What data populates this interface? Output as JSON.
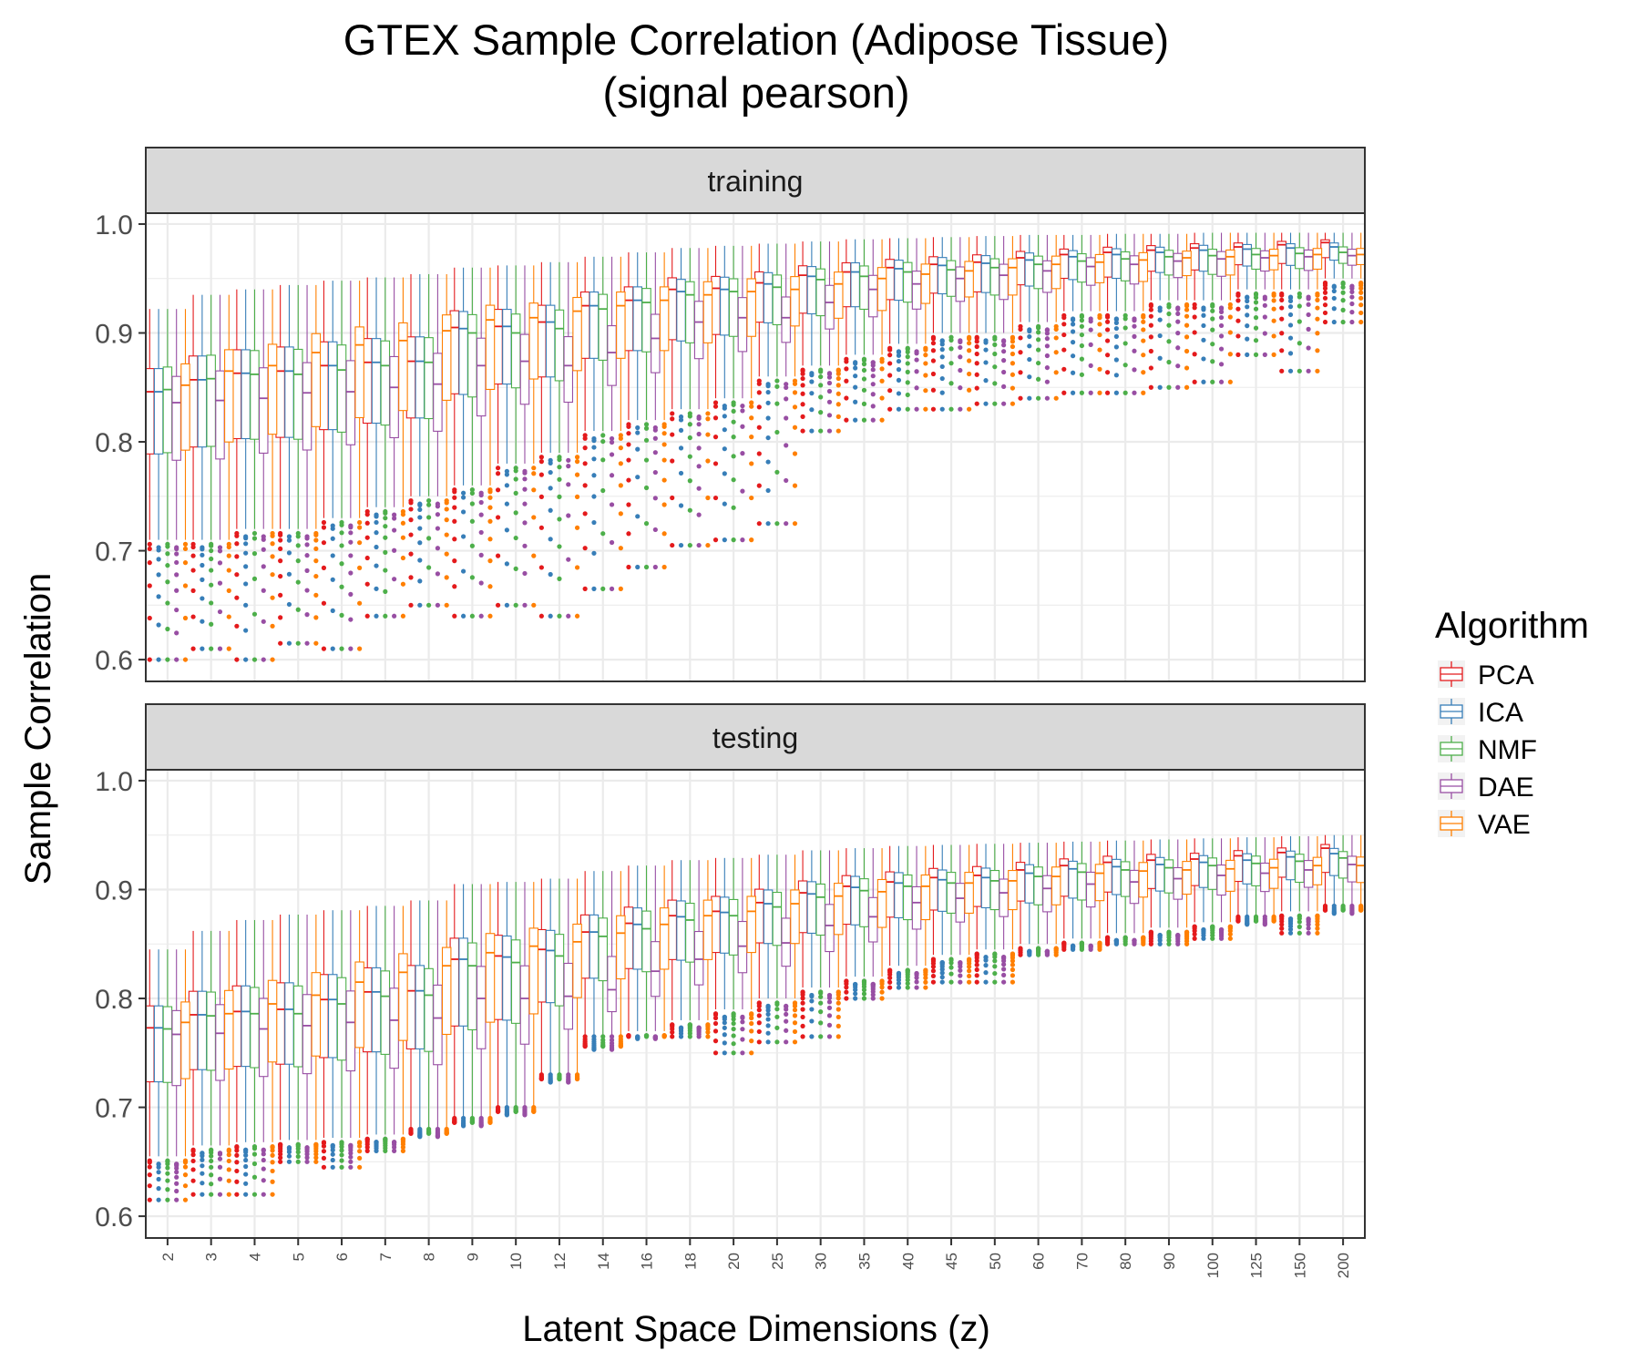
{
  "chart_data": {
    "type": "boxplot",
    "title_line1": "GTEX Sample Correlation (Adipose Tissue)",
    "title_line2": "(signal pearson)",
    "xlabel": "Latent Space Dimensions (z)",
    "ylabel": "Sample Correlation",
    "ylim": [
      0.58,
      1.01
    ],
    "yticks": [
      "0.6",
      "0.7",
      "0.8",
      "0.9",
      "1.0"
    ],
    "ytick_values": [
      0.6,
      0.7,
      0.8,
      0.9,
      1.0
    ],
    "categories": [
      "2",
      "3",
      "4",
      "5",
      "6",
      "7",
      "8",
      "9",
      "10",
      "12",
      "14",
      "16",
      "18",
      "20",
      "25",
      "30",
      "35",
      "40",
      "45",
      "50",
      "60",
      "70",
      "80",
      "90",
      "100",
      "125",
      "150",
      "200"
    ],
    "grid": true,
    "legend": {
      "title": "Algorithm",
      "position": "right",
      "entries": [
        "PCA",
        "ICA",
        "NMF",
        "DAE",
        "VAE"
      ]
    },
    "series_colors": {
      "PCA": "#e41a1c",
      "ICA": "#377eb8",
      "NMF": "#4daf4a",
      "DAE": "#984ea3",
      "VAE": "#ff7f00"
    },
    "panels": [
      {
        "name": "training",
        "medians": {
          "PCA": [
            0.846,
            0.857,
            0.863,
            0.865,
            0.87,
            0.873,
            0.874,
            0.905,
            0.906,
            0.91,
            0.925,
            0.93,
            0.94,
            0.941,
            0.946,
            0.953,
            0.956,
            0.96,
            0.963,
            0.965,
            0.969,
            0.972,
            0.974,
            0.976,
            0.978,
            0.979,
            0.981,
            0.983
          ],
          "ICA": [
            0.846,
            0.857,
            0.863,
            0.865,
            0.87,
            0.873,
            0.874,
            0.904,
            0.906,
            0.91,
            0.925,
            0.93,
            0.938,
            0.94,
            0.945,
            0.952,
            0.956,
            0.959,
            0.962,
            0.964,
            0.967,
            0.97,
            0.972,
            0.974,
            0.976,
            0.977,
            0.978,
            0.979
          ],
          "NMF": [
            0.848,
            0.858,
            0.862,
            0.862,
            0.866,
            0.87,
            0.873,
            0.9,
            0.9,
            0.904,
            0.922,
            0.928,
            0.935,
            0.938,
            0.942,
            0.949,
            0.952,
            0.956,
            0.958,
            0.96,
            0.963,
            0.966,
            0.968,
            0.97,
            0.971,
            0.972,
            0.973,
            0.974
          ],
          "DAE": [
            0.836,
            0.838,
            0.84,
            0.845,
            0.846,
            0.85,
            0.853,
            0.87,
            0.874,
            0.87,
            0.882,
            0.895,
            0.91,
            0.914,
            0.914,
            0.928,
            0.94,
            0.945,
            0.95,
            0.953,
            0.957,
            0.961,
            0.963,
            0.966,
            0.968,
            0.969,
            0.97,
            0.971
          ],
          "VAE": [
            0.852,
            0.865,
            0.87,
            0.882,
            0.889,
            0.893,
            0.902,
            0.912,
            0.914,
            0.92,
            0.925,
            0.93,
            0.935,
            0.938,
            0.94,
            0.945,
            0.95,
            0.954,
            0.957,
            0.96,
            0.963,
            0.965,
            0.967,
            0.969,
            0.97,
            0.971,
            0.972,
            0.972
          ]
        },
        "lower_whisker": [
          0.71,
          0.71,
          0.72,
          0.72,
          0.73,
          0.74,
          0.75,
          0.76,
          0.78,
          0.79,
          0.81,
          0.82,
          0.83,
          0.84,
          0.86,
          0.87,
          0.88,
          0.89,
          0.9,
          0.9,
          0.91,
          0.92,
          0.92,
          0.93,
          0.93,
          0.94,
          0.94,
          0.95
        ],
        "upper_whisker": [
          0.922,
          0.935,
          0.94,
          0.944,
          0.948,
          0.951,
          0.954,
          0.96,
          0.962,
          0.965,
          0.97,
          0.974,
          0.978,
          0.98,
          0.982,
          0.984,
          0.986,
          0.987,
          0.988,
          0.989,
          0.99,
          0.99,
          0.991,
          0.991,
          0.992,
          0.992,
          0.992,
          0.992
        ],
        "min_outlier": [
          0.6,
          0.61,
          0.6,
          0.615,
          0.61,
          0.64,
          0.65,
          0.64,
          0.65,
          0.64,
          0.665,
          0.685,
          0.705,
          0.71,
          0.725,
          0.81,
          0.82,
          0.83,
          0.83,
          0.835,
          0.84,
          0.845,
          0.845,
          0.85,
          0.855,
          0.88,
          0.865,
          0.91
        ]
      },
      {
        "name": "testing",
        "medians": {
          "PCA": [
            0.773,
            0.785,
            0.788,
            0.79,
            0.799,
            0.806,
            0.807,
            0.836,
            0.839,
            0.845,
            0.861,
            0.869,
            0.876,
            0.88,
            0.888,
            0.897,
            0.903,
            0.907,
            0.911,
            0.913,
            0.918,
            0.922,
            0.925,
            0.927,
            0.928,
            0.931,
            0.934,
            0.938
          ],
          "ICA": [
            0.773,
            0.785,
            0.788,
            0.79,
            0.799,
            0.806,
            0.807,
            0.836,
            0.838,
            0.844,
            0.861,
            0.868,
            0.875,
            0.879,
            0.887,
            0.896,
            0.902,
            0.906,
            0.909,
            0.911,
            0.915,
            0.919,
            0.921,
            0.923,
            0.925,
            0.927,
            0.93,
            0.933
          ],
          "NMF": [
            0.772,
            0.784,
            0.786,
            0.786,
            0.795,
            0.802,
            0.803,
            0.83,
            0.833,
            0.839,
            0.857,
            0.864,
            0.872,
            0.876,
            0.884,
            0.893,
            0.899,
            0.903,
            0.906,
            0.908,
            0.912,
            0.916,
            0.918,
            0.92,
            0.922,
            0.924,
            0.926,
            0.929
          ],
          "DAE": [
            0.767,
            0.768,
            0.772,
            0.775,
            0.778,
            0.78,
            0.782,
            0.8,
            0.8,
            0.802,
            0.808,
            0.825,
            0.836,
            0.848,
            0.851,
            0.867,
            0.875,
            0.888,
            0.892,
            0.897,
            0.901,
            0.905,
            0.907,
            0.91,
            0.913,
            0.915,
            0.918,
            0.923
          ],
          "VAE": [
            0.778,
            0.786,
            0.795,
            0.803,
            0.815,
            0.824,
            0.83,
            0.842,
            0.848,
            0.852,
            0.86,
            0.868,
            0.876,
            0.88,
            0.887,
            0.894,
            0.898,
            0.903,
            0.906,
            0.908,
            0.912,
            0.915,
            0.917,
            0.918,
            0.919,
            0.92,
            0.922,
            0.922
          ]
        },
        "lower_whisker": [
          0.655,
          0.665,
          0.668,
          0.67,
          0.672,
          0.675,
          0.68,
          0.69,
          0.7,
          0.73,
          0.76,
          0.77,
          0.78,
          0.79,
          0.8,
          0.81,
          0.82,
          0.83,
          0.84,
          0.845,
          0.85,
          0.855,
          0.86,
          0.865,
          0.87,
          0.875,
          0.88,
          0.885
        ],
        "upper_whisker": [
          0.845,
          0.862,
          0.872,
          0.877,
          0.881,
          0.885,
          0.89,
          0.905,
          0.907,
          0.91,
          0.917,
          0.922,
          0.927,
          0.929,
          0.932,
          0.936,
          0.938,
          0.94,
          0.941,
          0.942,
          0.943,
          0.944,
          0.945,
          0.946,
          0.947,
          0.948,
          0.949,
          0.95
        ],
        "min_outlier": [
          0.615,
          0.62,
          0.62,
          0.65,
          0.645,
          0.66,
          0.68,
          0.69,
          0.7,
          0.73,
          0.765,
          0.765,
          0.765,
          0.75,
          0.76,
          0.765,
          0.8,
          0.81,
          0.815,
          0.815,
          0.84,
          0.845,
          0.85,
          0.85,
          0.855,
          0.875,
          0.86,
          0.885
        ]
      }
    ]
  }
}
